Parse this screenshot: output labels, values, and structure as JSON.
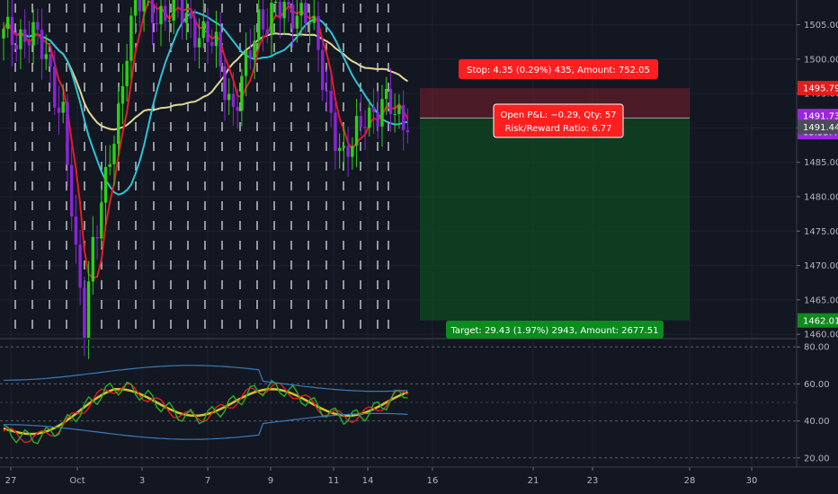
{
  "chart_data": [
    {
      "type": "candlestick",
      "price_axis": {
        "ticks": [
          "1505.00",
          "1500.00",
          "1495.00",
          "1490.00",
          "1485.00",
          "1480.00",
          "1475.00",
          "1470.00",
          "1465.00",
          "1460.00"
        ],
        "range": [
          1459.5,
          1508.6
        ]
      },
      "time_axis": {
        "labels": [
          "27",
          "Oct",
          "3",
          "7",
          "9",
          "11",
          "14",
          "16",
          "21",
          "23",
          "28",
          "30"
        ]
      },
      "price_badges": {
        "stop": {
          "value": "1495.79",
          "color": "#e01e1e"
        },
        "current": {
          "value": "1491.73",
          "color": "#9b27d8"
        },
        "countdown": {
          "value": "03:55:44",
          "color": "#9b27d8"
        },
        "entry": {
          "value": "1491.44",
          "color": "#4a4d57"
        },
        "target": {
          "value": "1462.01",
          "color": "#0f8a1c"
        }
      },
      "position": {
        "stop_label": "Stop: 4.35 (0.29%) 435, Amount: 752.05",
        "pnl_label": "Open P&L: −0.29, Qty: 57",
        "rr_label": "Risk/Reward Ratio: 6.77",
        "target_label": "Target: 29.43 (1.97%) 2943, Amount: 2677.51",
        "entry": 1491.44,
        "stop": 1495.79,
        "target": 1462.01
      },
      "moving_averages": [
        {
          "color": "#e0d69a"
        },
        {
          "color": "#2ec3d3"
        },
        {
          "color": "#e41e1e"
        }
      ],
      "colors": {
        "up": "#2ecf16",
        "down": "#8b24d8"
      }
    },
    {
      "type": "line",
      "axis_ticks": [
        "80.00",
        "60.00",
        "40.00",
        "20.00"
      ],
      "range": [
        16,
        84
      ],
      "series_colors": [
        "#d8c12e",
        "#e41e1e",
        "#27b023",
        "#3b7ab8",
        "#3b7ab8"
      ]
    }
  ]
}
